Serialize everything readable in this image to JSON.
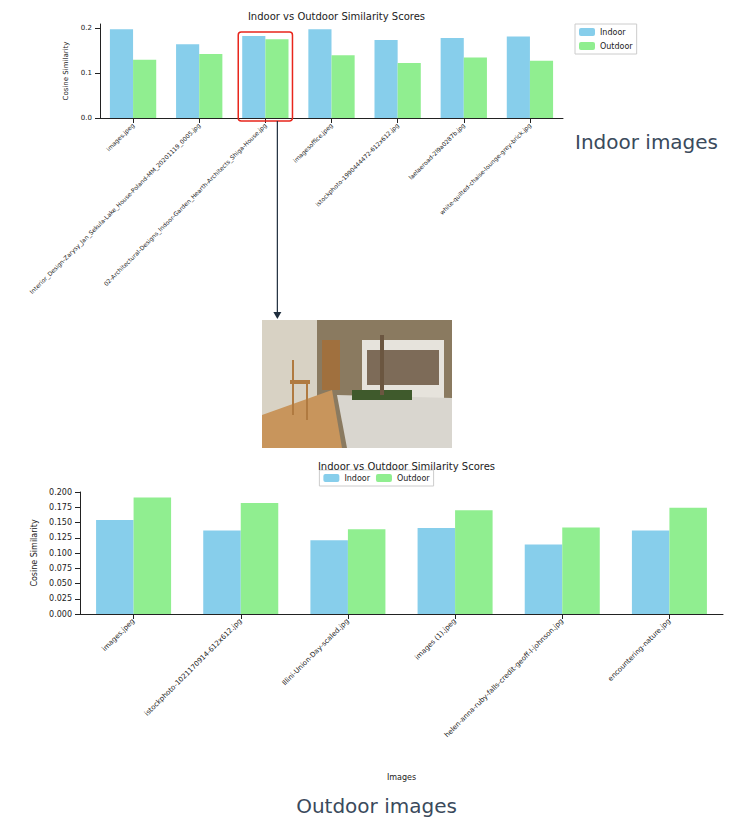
{
  "chart_data": [
    {
      "type": "bar",
      "title": "Indoor vs Outdoor Similarity Scores",
      "ylabel": "Cosine Similarity",
      "annotation": "Indoor images",
      "categories": [
        "images.jpeg",
        "Interior_Design-Zarysy_Jan_Sekula-Lake_House-Poland-MM_20201119_0005.jpg",
        "02-Architectural-Designs_Indoor-Garden_Hearth-Architects_Shiga-House.jpg",
        "imagesoffice.jpeg",
        "istockphoto-1990444472-612x612.jpg",
        "laelaeroad-2l9a0287b.jpg",
        "white-quilted-chaise-lounge-grey-brick.jpg"
      ],
      "series": [
        {
          "name": "Indoor",
          "color": "#87ceeb",
          "values": [
            0.198,
            0.165,
            0.183,
            0.198,
            0.174,
            0.179,
            0.182
          ]
        },
        {
          "name": "Outdoor",
          "color": "#90ee90",
          "values": [
            0.13,
            0.143,
            0.176,
            0.14,
            0.123,
            0.135,
            0.128
          ]
        }
      ],
      "ylim": [
        0,
        0.21
      ],
      "yticks": [
        {
          "value": 0,
          "label": "0.0"
        },
        {
          "value": 0.1,
          "label": "0.1"
        },
        {
          "value": 0.2,
          "label": "0.2"
        }
      ],
      "grid": false,
      "legend": "right"
    },
    {
      "type": "bar",
      "title": "Indoor vs Outdoor Similarity Scores",
      "xlabel": "Images",
      "ylabel": "Cosine Similarity",
      "annotation": "Outdoor images",
      "categories": [
        "images.jpeg",
        "istockphoto-1021170914-612x612.jpg",
        "Illini-Union-Day-scaled.jpg",
        "images (1).jpeg",
        "helen-anna-ruby-falls-credit-geoff-l-johnson.jpg",
        "encountering-nature.jpg"
      ],
      "series": [
        {
          "name": "Indoor",
          "color": "#87ceeb",
          "values": [
            0.154,
            0.137,
            0.121,
            0.141,
            0.114,
            0.137
          ]
        },
        {
          "name": "Outdoor",
          "color": "#90ee90",
          "values": [
            0.191,
            0.182,
            0.139,
            0.17,
            0.142,
            0.174
          ]
        }
      ],
      "ylim": [
        0,
        0.2
      ],
      "yticks": [
        {
          "value": 0,
          "label": "0.000"
        },
        {
          "value": 0.025,
          "label": "0.025"
        },
        {
          "value": 0.05,
          "label": "0.050"
        },
        {
          "value": 0.075,
          "label": "0.075"
        },
        {
          "value": 0.1,
          "label": "0.100"
        },
        {
          "value": 0.125,
          "label": "0.125"
        },
        {
          "value": 0.15,
          "label": "0.150"
        },
        {
          "value": 0.175,
          "label": "0.175"
        },
        {
          "value": 0.2,
          "label": "0.200"
        }
      ],
      "grid": false,
      "legend": "top"
    }
  ]
}
